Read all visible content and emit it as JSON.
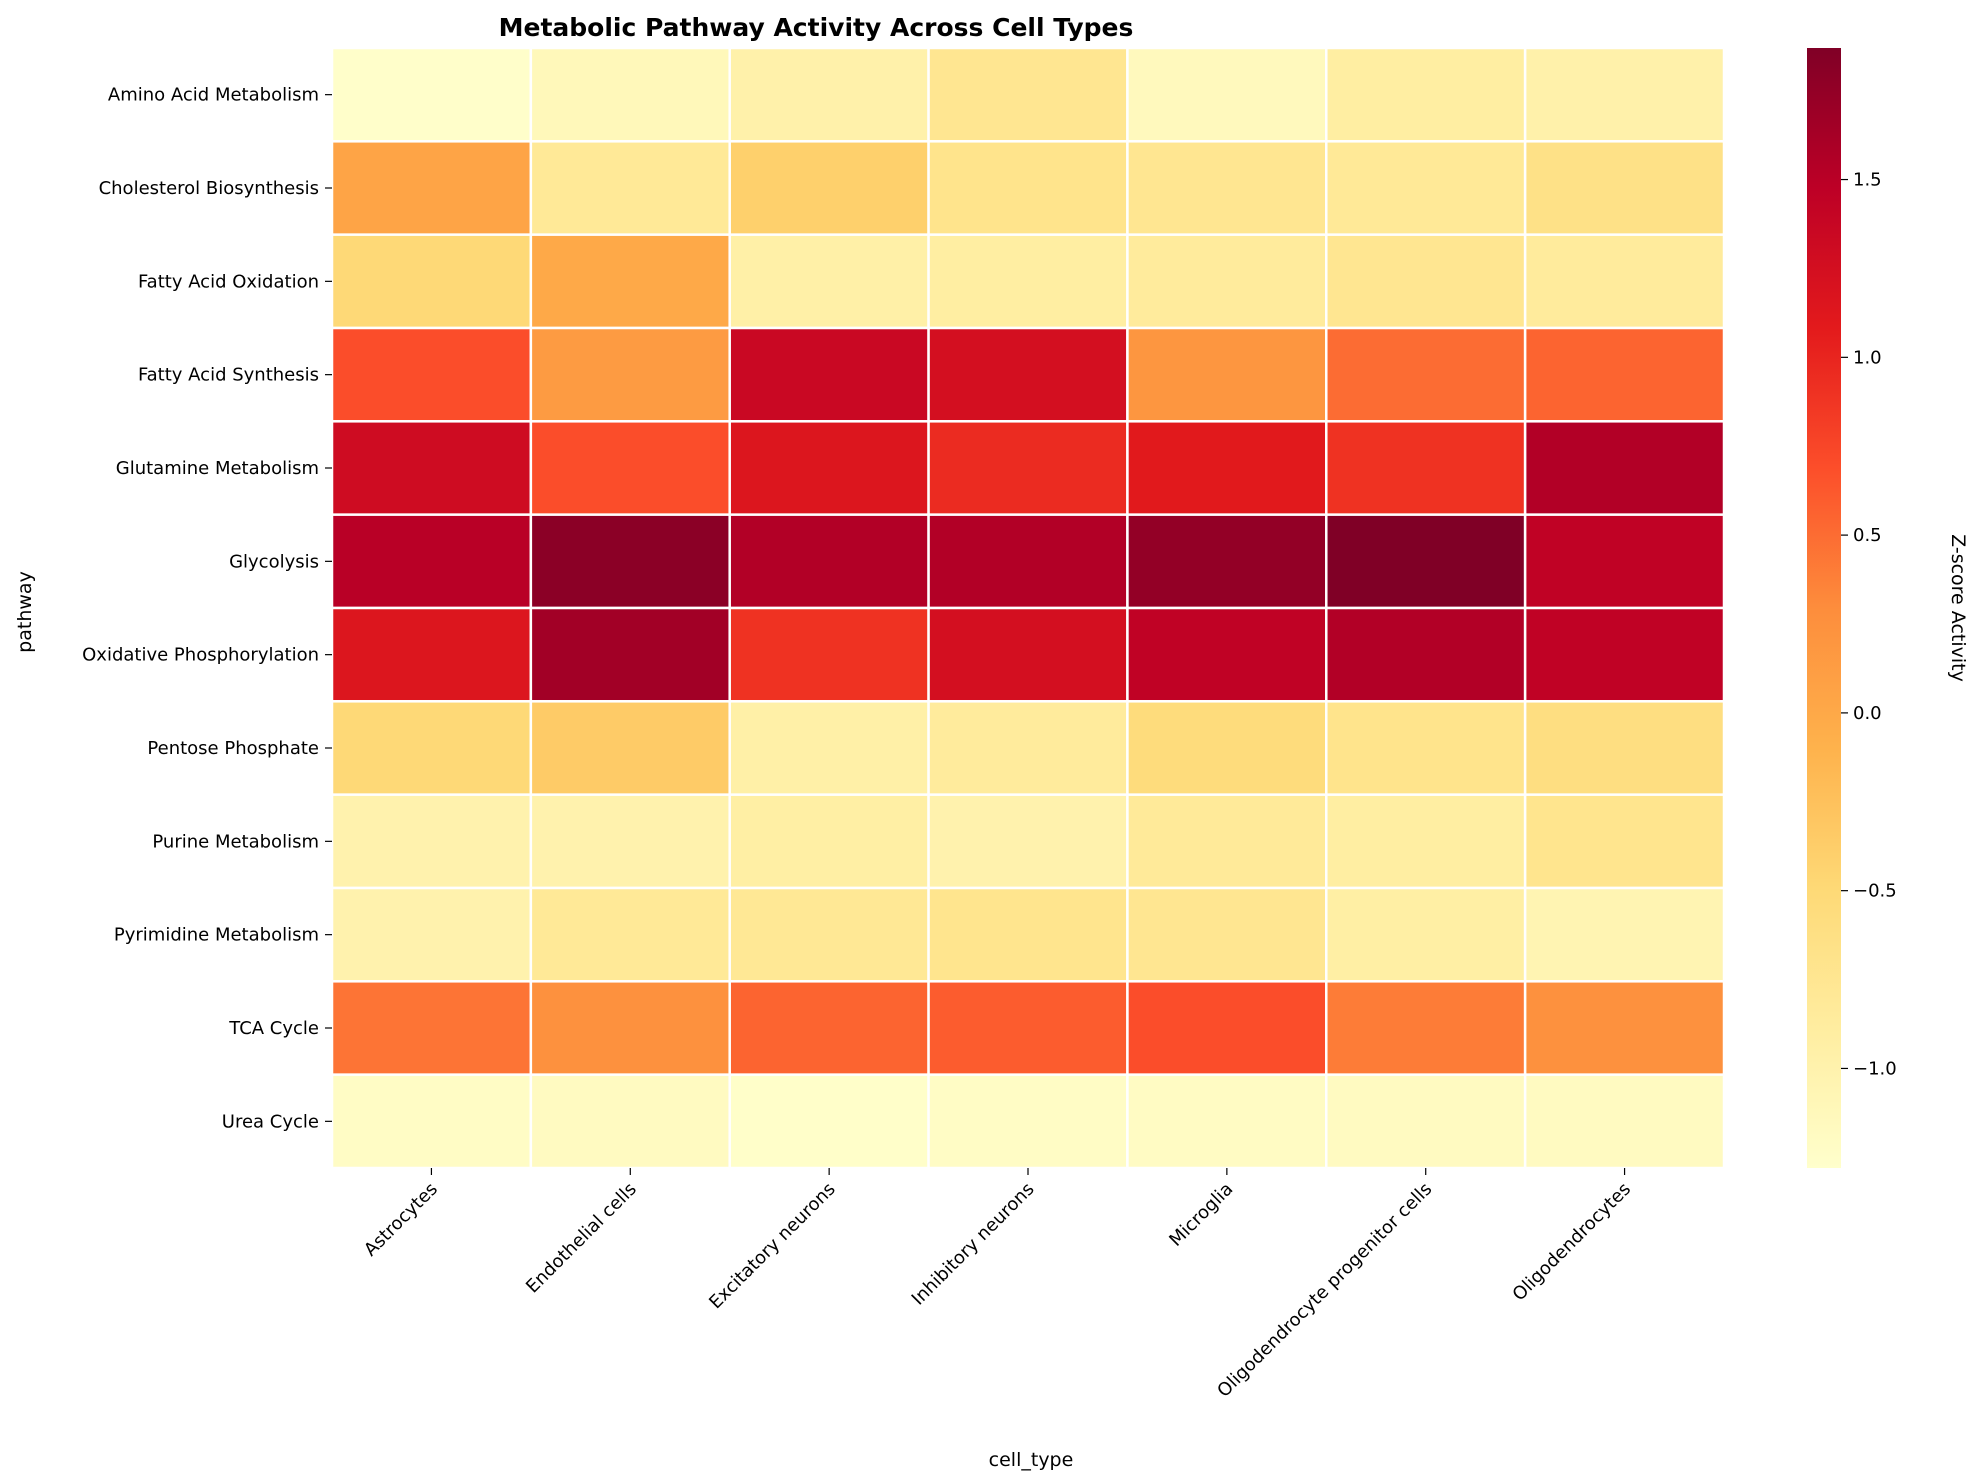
{
  "chart_data": {
    "type": "heatmap",
    "title": "Metabolic Pathway Activity Across Cell Types",
    "xlabel": "cell_type",
    "ylabel": "pathway",
    "colorbar_label": "Z-score Activity",
    "colormap": "YlOrRd",
    "colormap_stops": [
      "#ffffcc",
      "#ffeda0",
      "#fed976",
      "#feb24c",
      "#fd8d3c",
      "#fc4e2a",
      "#e31a1c",
      "#bd0026",
      "#800026"
    ],
    "vmin": -1.28,
    "vmax": 1.87,
    "colorbar_ticks": [
      -1.0,
      -0.5,
      0.0,
      0.5,
      1.0,
      1.5
    ],
    "colorbar_tick_labels": [
      "−1.0",
      "−0.5",
      "0.0",
      "0.5",
      "1.0",
      "1.5"
    ],
    "cell_border_color": "#ffffff",
    "columns": [
      "Astrocytes",
      "Endothelial cells",
      "Excitatory neurons",
      "Inhibitory neurons",
      "Microglia",
      "Oligodendrocyte progenitor cells",
      "Oligodendrocytes"
    ],
    "rows": [
      "Amino Acid Metabolism",
      "Cholesterol Biosynthesis",
      "Fatty Acid Oxidation",
      "Fatty Acid Synthesis",
      "Glutamine Metabolism",
      "Glycolysis",
      "Oxidative Phosphorylation",
      "Pentose Phosphate",
      "Purine Metabolism",
      "Pyrimidine Metabolism",
      "TCA Cycle",
      "Urea Cycle"
    ],
    "values": [
      [
        -1.26,
        -1.12,
        -0.98,
        -0.75,
        -1.15,
        -0.9,
        -0.98
      ],
      [
        0.05,
        -0.8,
        -0.4,
        -0.7,
        -0.75,
        -0.8,
        -0.65
      ],
      [
        -0.5,
        0.0,
        -0.95,
        -0.9,
        -0.85,
        -0.75,
        -0.85
      ],
      [
        0.7,
        0.15,
        1.35,
        1.25,
        0.2,
        0.5,
        0.55
      ],
      [
        1.3,
        0.7,
        1.15,
        0.95,
        1.1,
        0.9,
        1.55
      ],
      [
        1.5,
        1.8,
        1.55,
        1.55,
        1.75,
        1.87,
        1.45
      ],
      [
        1.15,
        1.65,
        0.9,
        1.25,
        1.45,
        1.55,
        1.45
      ],
      [
        -0.5,
        -0.35,
        -0.95,
        -0.85,
        -0.55,
        -0.7,
        -0.6
      ],
      [
        -1.0,
        -1.0,
        -0.92,
        -1.0,
        -0.82,
        -0.9,
        -0.72
      ],
      [
        -1.0,
        -0.8,
        -0.78,
        -0.72,
        -0.75,
        -0.92,
        -1.05
      ],
      [
        0.45,
        0.25,
        0.55,
        0.6,
        0.7,
        0.4,
        0.25
      ],
      [
        -1.22,
        -1.18,
        -1.25,
        -1.22,
        -1.2,
        -1.18,
        -1.18
      ]
    ]
  }
}
